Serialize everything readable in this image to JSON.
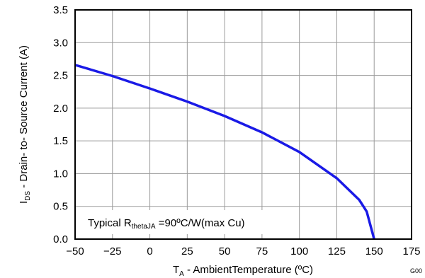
{
  "chart_data": {
    "type": "line",
    "xlabel": {
      "main": "T",
      "sub": "A",
      "rest": " - AmbientTemperature (ºC)"
    },
    "ylabel": {
      "main": "I",
      "sub": "DS",
      "rest": " - Drain- to- Source Current (A)"
    },
    "xlim": [
      -50,
      175
    ],
    "ylim": [
      0,
      3.5
    ],
    "x_ticks": [
      "−50",
      "−25",
      "0",
      "25",
      "50",
      "75",
      "100",
      "125",
      "150",
      "175"
    ],
    "y_ticks": [
      "0.0",
      "0.5",
      "1.0",
      "1.5",
      "2.0",
      "2.5",
      "3.0",
      "3.5"
    ],
    "grid": true,
    "series": [
      {
        "color": "#1a1ae6",
        "x": [
          -50,
          -25,
          0,
          25,
          50,
          75,
          100,
          125,
          140,
          145,
          150
        ],
        "y": [
          2.66,
          2.49,
          2.3,
          2.1,
          1.88,
          1.63,
          1.33,
          0.93,
          0.6,
          0.42,
          0.0
        ]
      }
    ],
    "annotation": {
      "text1": "Typical R",
      "sub": "thetaJA",
      "text2": " =90ºC/W(max Cu)"
    },
    "figure_code": "G00"
  }
}
